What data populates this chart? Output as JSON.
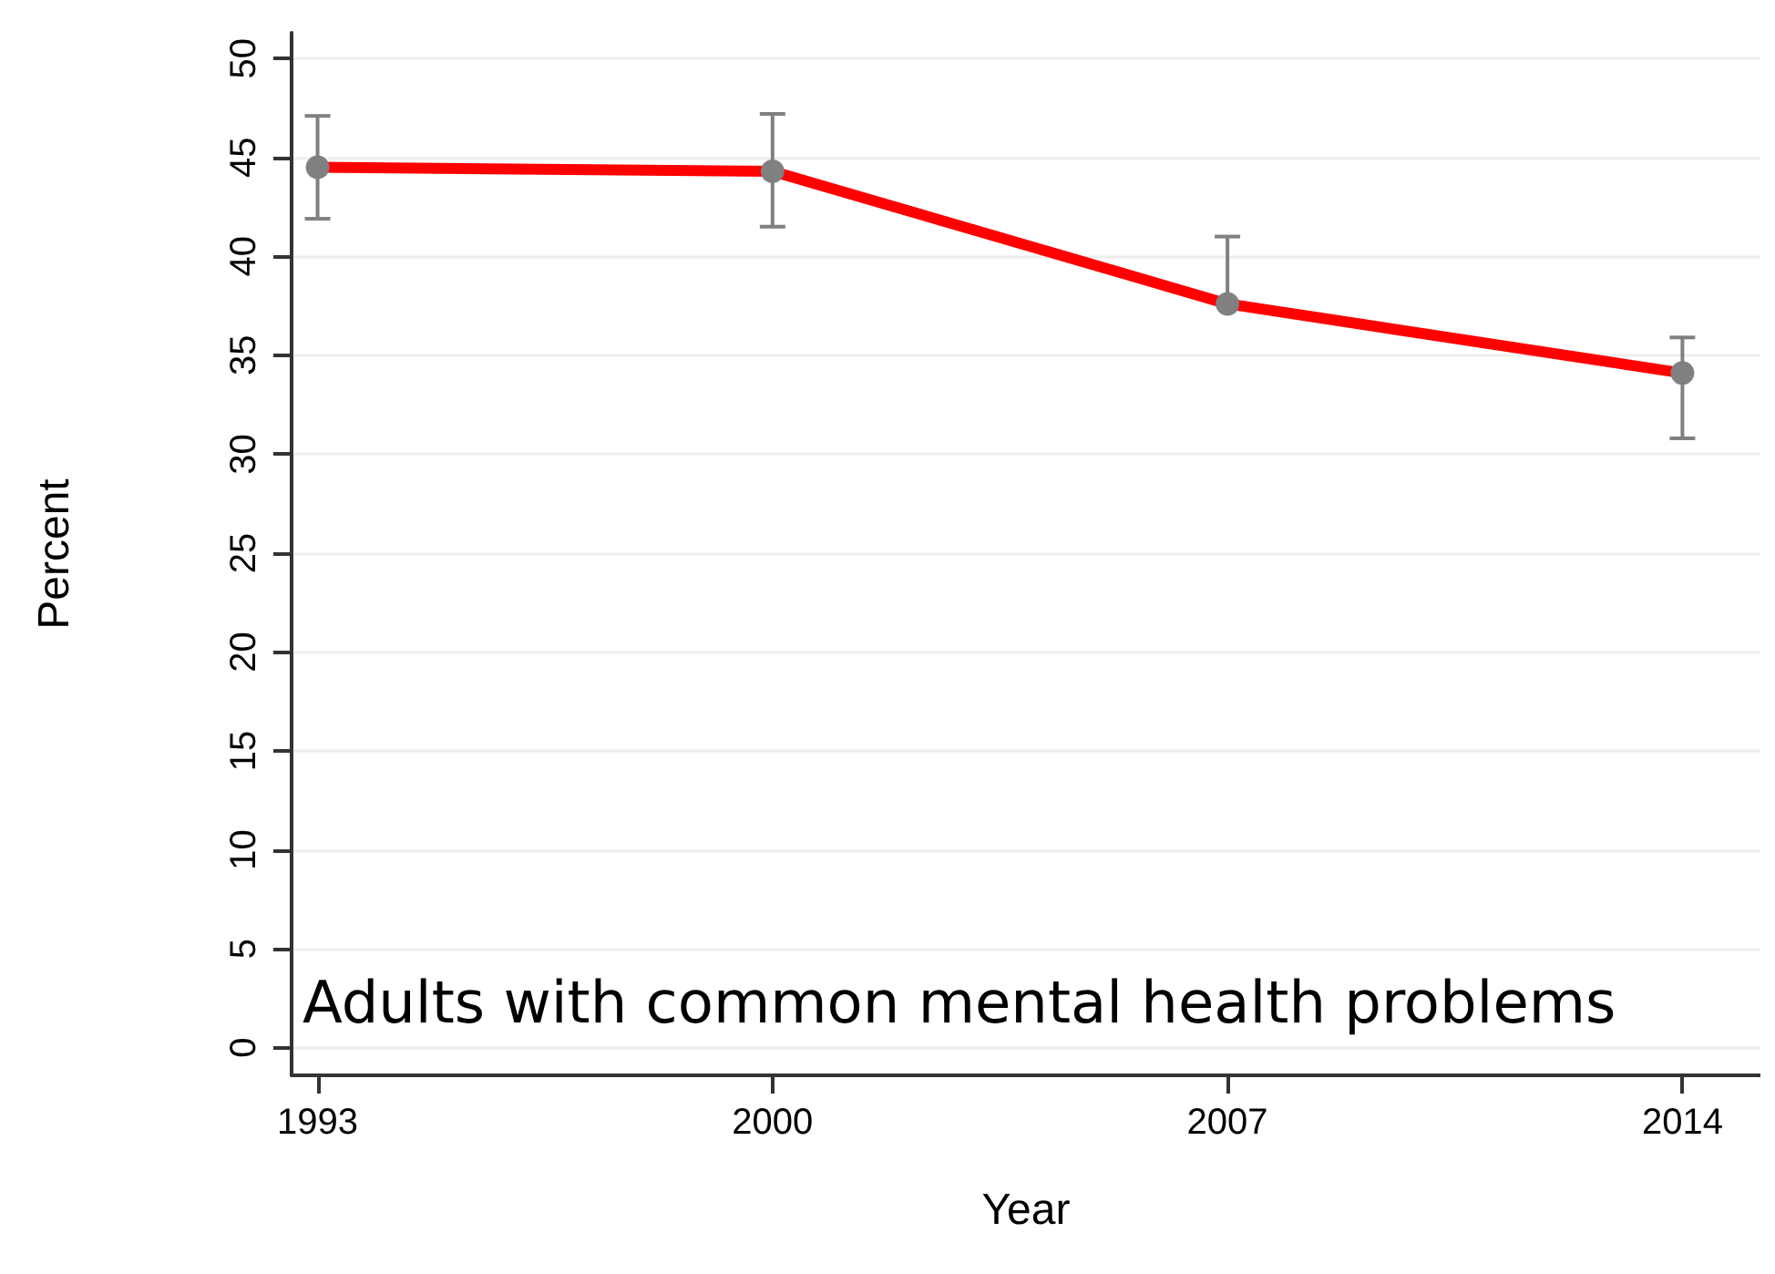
{
  "chart_data": {
    "type": "line",
    "xlabel": "Year",
    "ylabel": "Percent",
    "x": [
      1993,
      2000,
      2007,
      2014
    ],
    "series": [
      {
        "color": "#ff0000",
        "values": [
          44.5,
          44.3,
          37.6,
          34.1
        ],
        "errors": [
          [
            41.9,
            47.1
          ],
          [
            41.5,
            47.2
          ],
          [
            37.6,
            41.0
          ],
          [
            30.8,
            35.9
          ]
        ]
      }
    ],
    "xlim": [
      1992.6,
      2015.2
    ],
    "xticks": [
      1993,
      2000,
      2007,
      2014
    ],
    "ylim": [
      -1.4,
      51.3
    ],
    "yticks": [
      0,
      5,
      10,
      15,
      20,
      25,
      30,
      35,
      40,
      45,
      50
    ],
    "grid": "y",
    "marker": "circle",
    "line_style": "solid",
    "annotations": [
      "Adults with common mental health problems"
    ]
  }
}
